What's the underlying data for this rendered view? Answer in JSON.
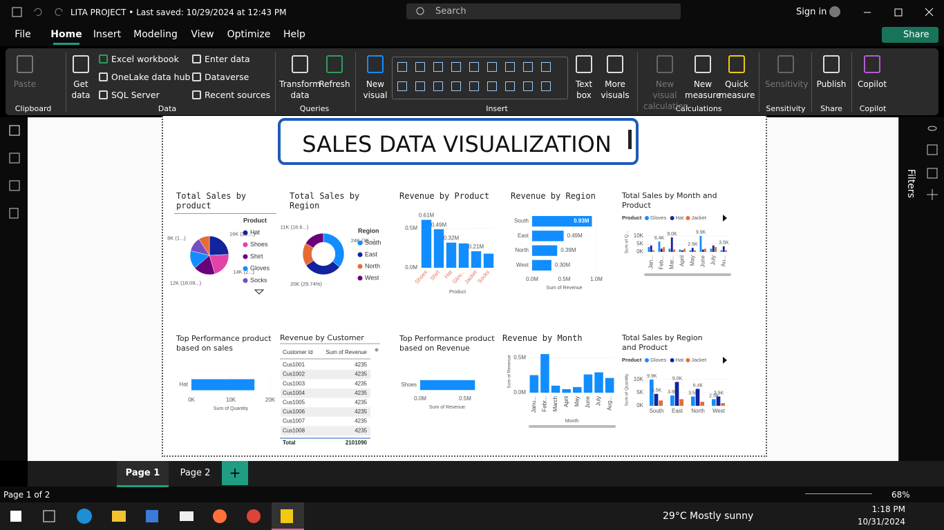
{
  "title_bar": {
    "app_title": "LITA PROJECT • Last saved: 10/29/2024 at 12:43 PM",
    "search": "Search",
    "sign_in": "Sign in"
  },
  "menu": {
    "items": [
      "File",
      "Home",
      "Insert",
      "Modeling",
      "View",
      "Optimize",
      "Help"
    ],
    "share": "Share"
  },
  "ribbon": {
    "groups": [
      {
        "name": "Clipboard",
        "buttons": [
          "Paste"
        ]
      },
      {
        "name": "Data",
        "buttons": [
          "Get data",
          "Excel workbook",
          "OneLake data hub",
          "SQL Server",
          "Enter data",
          "Dataverse",
          "Recent sources"
        ]
      },
      {
        "name": "Queries",
        "buttons": [
          "Transform data",
          "Refresh"
        ]
      },
      {
        "name": "Insert",
        "buttons": [
          "New visual",
          "Text box",
          "More visuals"
        ]
      },
      {
        "name": "Calculations",
        "buttons": [
          "New visual calculation",
          "New measure",
          "Quick measure"
        ]
      },
      {
        "name": "Sensitivity",
        "buttons": [
          "Sensitivity"
        ]
      },
      {
        "name": "Share",
        "buttons": [
          "Publish"
        ]
      },
      {
        "name": "Copilot",
        "buttons": [
          "Copilot"
        ]
      }
    ]
  },
  "right_panel": {
    "filters": "Filters"
  },
  "report": {
    "title": "SALES DATA VISUALIZATION",
    "visuals": [
      {
        "type": "pie",
        "title": "Total Sales by product",
        "legend_title": "Product",
        "legend": [
          "Hat",
          "Shoes",
          "Shirt",
          "Gloves",
          "Socks"
        ],
        "legend_colors": [
          "#12239e",
          "#e044a7",
          "#6b007b",
          "#118dff",
          "#744ec2"
        ],
        "values": [
          16,
          14,
          12,
          10,
          8,
          6
        ],
        "colors": [
          "#12239e",
          "#e044a7",
          "#6b007b",
          "#118dff",
          "#744ec2",
          "#e66c37"
        ],
        "value_labels": [
          "16K (23....)",
          "14K (2...)",
          "12K (18.09...)",
          null,
          "8K (1...)",
          null
        ]
      },
      {
        "type": "donut",
        "title": "Total Sales by Region",
        "legend_title": "Region",
        "legend": [
          "South",
          "East",
          "North",
          "West"
        ],
        "legend_colors": [
          "#118dff",
          "#12239e",
          "#e66c37",
          "#6b007b"
        ],
        "values": [
          24,
          20,
          12,
          11
        ],
        "colors": [
          "#118dff",
          "#12239e",
          "#e66c37",
          "#6b007b"
        ],
        "value_labels": [
          "24K (35...)",
          "20K (29.74%)",
          null,
          "11K (16.6...)"
        ]
      },
      {
        "type": "column",
        "title": "Revenue by Product",
        "categories": [
          "Shoes",
          "Shirt",
          "Hat",
          "Glov...",
          "Jacket",
          "Socks"
        ],
        "values": [
          0.61,
          0.49,
          0.32,
          0.31,
          0.21,
          0.18
        ],
        "value_labels": [
          "0.61M",
          "0.49M",
          "0.32M",
          null,
          "0.21M",
          null
        ],
        "color": "#118dff",
        "category_color": "#e8735a",
        "ylim": [
          0,
          0.65
        ],
        "yticks": [
          {
            "value": 0,
            "label": "0.0M"
          },
          {
            "value": 0.5,
            "label": "0.5M"
          }
        ],
        "x_title": "Product"
      },
      {
        "type": "hbar",
        "title": "Revenue by Region",
        "categories": [
          "South",
          "East",
          "North",
          "West"
        ],
        "values": [
          0.93,
          0.49,
          0.39,
          0.3
        ],
        "value_labels": [
          "0.93M",
          "0.49M",
          "0.39M",
          "0.30M"
        ],
        "color": "#118dff",
        "xlim": [
          0,
          1.0
        ],
        "xticks": [
          {
            "value": 0,
            "label": "0.0M"
          },
          {
            "value": 0.5,
            "label": "0.5M"
          },
          {
            "value": 1.0,
            "label": "1.0M"
          }
        ],
        "x_title": "Sum of Revenue"
      },
      {
        "type": "cluster",
        "title": "Total Sales by Month and Product",
        "legend_title": "Product",
        "categories": [
          "Jan...",
          "Feb...",
          "Mar...",
          "April",
          "May",
          "June",
          "July",
          "Au..."
        ],
        "series": [
          {
            "name": "Gloves",
            "color": "#118dff",
            "values": [
              3,
              6.4,
              2,
              1.5,
              1,
              9.9,
              2,
              1
            ],
            "value_labels": [
              null,
              "6.4K",
              null,
              null,
              null,
              "9.9K",
              null,
              null
            ]
          },
          {
            "name": "Hat",
            "color": "#12239e",
            "values": [
              4,
              2,
              9.0,
              1,
              2.5,
              1.5,
              4,
              3.5
            ],
            "value_labels": [
              null,
              null,
              "9.0K",
              null,
              "2.5K",
              null,
              null,
              "3.5K"
            ]
          },
          {
            "name": "Jacket",
            "color": "#e66c37",
            "values": [
              1,
              3,
              1.5,
              2,
              1,
              2,
              3,
              1
            ],
            "value_labels": [
              null,
              null,
              null,
              null,
              null,
              null,
              null,
              null
            ]
          }
        ],
        "ylim": [
          0,
          12
        ],
        "yticks": [
          {
            "value": 0,
            "label": "0K"
          },
          {
            "value": 5,
            "label": "5K"
          },
          {
            "value": 10,
            "label": "10K"
          }
        ],
        "y_title": "Sum of Q..."
      },
      {
        "type": "hbar",
        "title": "Top Performance product based on sales",
        "categories": [
          "Hat"
        ],
        "values": [
          16
        ],
        "color": "#118dff",
        "xlim": [
          0,
          20
        ],
        "xticks": [
          {
            "value": 0,
            "label": "0K"
          },
          {
            "value": 10,
            "label": "10K"
          },
          {
            "value": 20,
            "label": "20K"
          }
        ],
        "x_title": "Sum of Quantity"
      },
      {
        "type": "table",
        "title": "Revenue by Customer",
        "columns": [
          "Customer Id",
          "Sum of Revenue"
        ],
        "rows": [
          [
            "Cus1001",
            4235
          ],
          [
            "Cus1002",
            4235
          ],
          [
            "Cus1003",
            4235
          ],
          [
            "Cus1004",
            4235
          ],
          [
            "Cus1005",
            4235
          ],
          [
            "Cus1006",
            4235
          ],
          [
            "Cus1007",
            4235
          ],
          [
            "Cus1008",
            4235
          ]
        ],
        "total": [
          "Total",
          2101090
        ]
      },
      {
        "type": "hbar",
        "title": "Top Performance product based on Revenue",
        "categories": [
          "Shoes"
        ],
        "values": [
          0.61
        ],
        "color": "#118dff",
        "xlim": [
          0,
          0.6
        ],
        "xticks": [
          {
            "value": 0,
            "label": "0.0M"
          },
          {
            "value": 0.5,
            "label": "0.5M"
          }
        ],
        "x_title": "Sum of Revenue"
      },
      {
        "type": "column",
        "title": "Revenue by Month",
        "categories": [
          "Janu...",
          "Febr...",
          "March",
          "April",
          "May",
          "June",
          "July",
          "Aug..."
        ],
        "values": [
          0.25,
          0.55,
          0.1,
          0.05,
          0.08,
          0.26,
          0.29,
          0.21
        ],
        "color": "#118dff",
        "category_color": "#444444",
        "ylim": [
          0,
          0.6
        ],
        "yticks": [
          {
            "value": 0,
            "label": "0.0M"
          },
          {
            "value": 0.5,
            "label": "0.5M"
          }
        ],
        "x_title": "Month",
        "y_title": "Sum of Revenue"
      },
      {
        "type": "cluster",
        "title": "Total Sales by Region and Product",
        "legend_title": "Product",
        "categories": [
          "South",
          "East",
          "North",
          "West"
        ],
        "series": [
          {
            "name": "Gloves",
            "color": "#118dff",
            "values": [
              9.9,
              3.9,
              3.5,
              2.5
            ],
            "value_labels": [
              "9.9K",
              "3.9K",
              "3.5K",
              "2.5K"
            ]
          },
          {
            "name": "Hat",
            "color": "#12239e",
            "values": [
              4.5,
              9.0,
              6.4,
              3.5
            ],
            "value_labels": [
              "4.5K",
              "9.0K",
              "6.4K",
              "3.5K"
            ]
          },
          {
            "name": "Jacket",
            "color": "#e66c37",
            "values": [
              2,
              2.5,
              1.5,
              1
            ],
            "value_labels": [
              null,
              null,
              null,
              null
            ]
          }
        ],
        "ylim": [
          0,
          12
        ],
        "yticks": [
          {
            "value": 0,
            "label": "0K"
          },
          {
            "value": 5,
            "label": "5K"
          },
          {
            "value": 10,
            "label": "10K"
          }
        ],
        "y_title": "Sum of Quantity"
      }
    ]
  },
  "pages": {
    "tabs": [
      "Page 1",
      "Page 2"
    ]
  },
  "status_bar": {
    "page_info": "Page 1 of 2",
    "zoom": "68%"
  },
  "taskbar": {
    "weather": "29°C Mostly sunny",
    "time": "1:18 PM",
    "date": "10/31/2024"
  }
}
